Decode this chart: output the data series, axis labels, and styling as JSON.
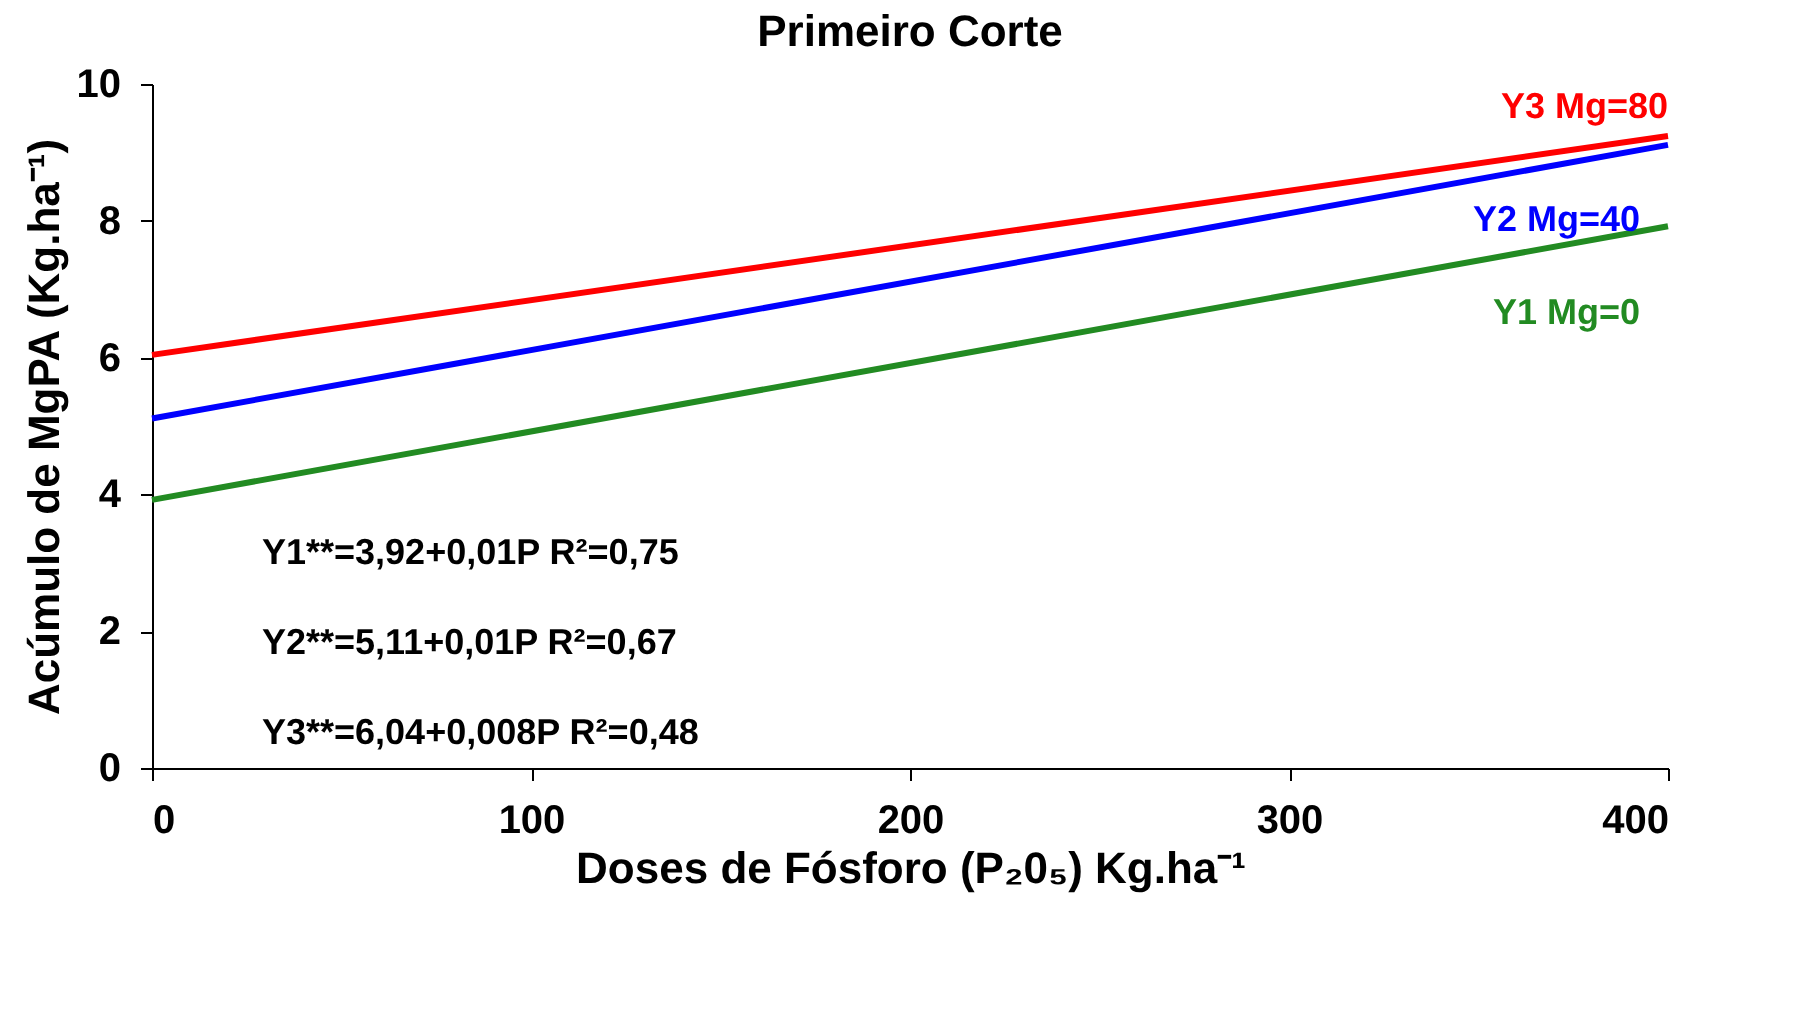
{
  "chart_data": {
    "type": "line",
    "title": "Primeiro Corte",
    "xlabel": "Doses de Fósforo (P₂0₅)  Kg.ha⁻¹",
    "ylabel": "Acúmulo de MgPA (Kg.ha⁻¹)",
    "x": [
      0,
      400
    ],
    "series": [
      {
        "name": "Y1 Mg=0",
        "color": "#228b22",
        "values": [
          3.92,
          7.92
        ]
      },
      {
        "name": "Y2 Mg=40",
        "color": "#0000ff",
        "values": [
          5.11,
          9.11
        ]
      },
      {
        "name": "Y3 Mg=80",
        "color": "#ff0000",
        "values": [
          6.04,
          9.24
        ]
      }
    ],
    "xlim": [
      0,
      400
    ],
    "xticks": [
      0,
      100,
      200,
      300,
      400
    ],
    "ylim": [
      0,
      10
    ],
    "yticks": [
      0,
      2,
      4,
      6,
      8,
      10
    ],
    "annotations": [
      "Y1**=3,92+0,01P     R²=0,75",
      "Y2**=5,11+0,01P     R²=0,67",
      "Y3**=6,04+0,008P   R²=0,48"
    ],
    "legend": false,
    "grid": false,
    "line_style": "solid",
    "marker": "none"
  }
}
